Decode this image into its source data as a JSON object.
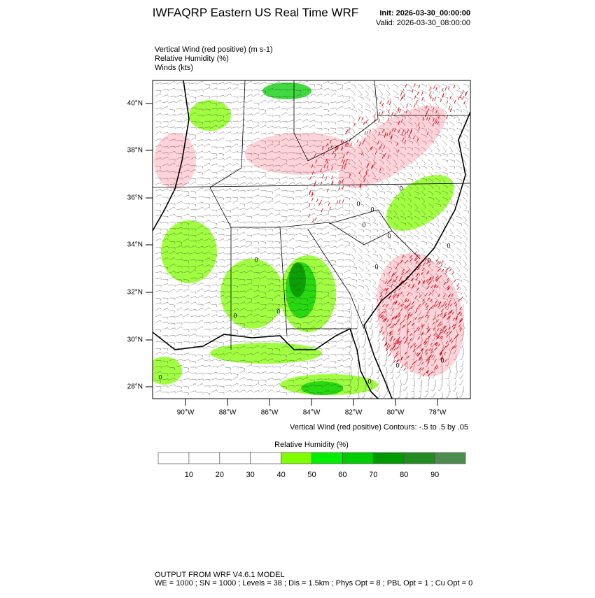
{
  "header": {
    "title": "IWFAQRP Eastern US Real Time WRF",
    "init": "Init: 2026-03-30_00:00:00",
    "valid": "Valid: 2026-03-30_08:00:00"
  },
  "fields": [
    "Vertical Wind (red positive)   (m s-1)",
    "Relative Humidity   (%)",
    "Winds   (kts)"
  ],
  "map": {
    "lat_labels": [
      "40°N",
      "38°N",
      "36°N",
      "34°N",
      "32°N",
      "30°N",
      "28°N"
    ],
    "lon_labels": [
      "90°W",
      "88°W",
      "86°W",
      "84°W",
      "82°W",
      "80°W",
      "78°W"
    ],
    "contour_label": "0"
  },
  "contour_note": "Vertical Wind (red positive) Contours: -.5 to .5 by .05",
  "colorbar": {
    "title": "Relative Humidity  (%)",
    "labels": [
      10,
      20,
      30,
      40,
      50,
      60,
      70,
      80,
      90
    ],
    "colors": [
      "#ffffff",
      "#ffffff",
      "#ffffff",
      "#ffffff",
      "#80ff00",
      "#00ee00",
      "#00cc00",
      "#009900",
      "#228b22",
      "#4e8b4e"
    ]
  },
  "footer": [
    "OUTPUT FROM WRF V4.6.1 MODEL",
    "WE = 1000 ; SN = 1000 ; Levels = 38 ; Dis = 1.5km ; Phys Opt = 8 ; PBL Opt = 1 ; Cu Opt = 0"
  ]
}
